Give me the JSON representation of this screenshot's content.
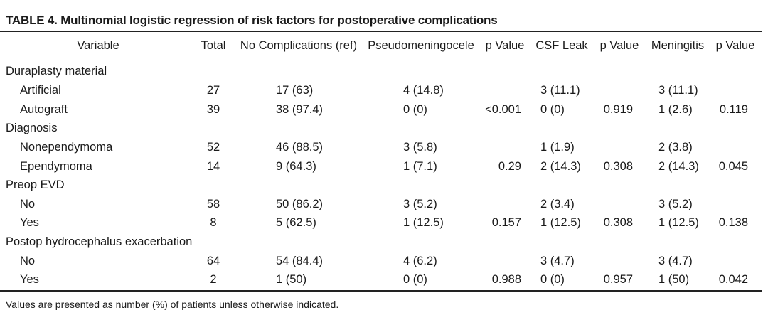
{
  "title": "TABLE 4. Multinomial logistic regression of risk factors for postoperative complications",
  "headers": [
    "Variable",
    "Total",
    "No Complications (ref)",
    "Pseudomeningocele",
    "p Value",
    "CSF Leak",
    "p Value",
    "Meningitis",
    "p Value"
  ],
  "rows": [
    {
      "type": "group",
      "label": "Duraplasty material"
    },
    {
      "type": "data",
      "label": "Artificial",
      "total": "27",
      "none": "17 (63)",
      "pseudo": "4 (14.8)",
      "p1": "",
      "csf": "3 (11.1)",
      "p2": "",
      "men": "3 (11.1)",
      "p3": ""
    },
    {
      "type": "data",
      "label": "Autograft",
      "total": "39",
      "none": "38 (97.4)",
      "pseudo": "0 (0)",
      "p1": "<0.001",
      "csf": "0 (0)",
      "p2": "0.919",
      "men": "1 (2.6)",
      "p3": "0.119"
    },
    {
      "type": "group",
      "label": "Diagnosis"
    },
    {
      "type": "data",
      "label": "Nonependymoma",
      "total": "52",
      "none": "46 (88.5)",
      "pseudo": "3 (5.8)",
      "p1": "",
      "csf": "1 (1.9)",
      "p2": "",
      "men": "2 (3.8)",
      "p3": ""
    },
    {
      "type": "data",
      "label": "Ependymoma",
      "total": "14",
      "none": "9 (64.3)",
      "pseudo": "1 (7.1)",
      "p1": "0.29",
      "csf": "2 (14.3)",
      "p2": "0.308",
      "men": "2 (14.3)",
      "p3": "0.045"
    },
    {
      "type": "group",
      "label": "Preop EVD"
    },
    {
      "type": "data",
      "label": "No",
      "total": "58",
      "none": "50 (86.2)",
      "pseudo": "3 (5.2)",
      "p1": "",
      "csf": "2 (3.4)",
      "p2": "",
      "men": "3 (5.2)",
      "p3": ""
    },
    {
      "type": "data",
      "label": "Yes",
      "total": "8",
      "none": "5 (62.5)",
      "pseudo": "1 (12.5)",
      "p1": "0.157",
      "csf": "1 (12.5)",
      "p2": "0.308",
      "men": "1 (12.5)",
      "p3": "0.138"
    },
    {
      "type": "group",
      "label": "Postop hydrocephalus exacerbation"
    },
    {
      "type": "data",
      "label": "No",
      "total": "64",
      "none": "54 (84.4)",
      "pseudo": "4 (6.2)",
      "p1": "",
      "csf": "3 (4.7)",
      "p2": "",
      "men": "3 (4.7)",
      "p3": ""
    },
    {
      "type": "data",
      "label": "Yes",
      "total": "2",
      "none": "1 (50)",
      "pseudo": "0 (0)",
      "p1": "0.988",
      "csf": "0 (0)",
      "p2": "0.957",
      "men": "1 (50)",
      "p3": "0.042"
    }
  ],
  "footnote": "Values are presented as number (%) of patients unless otherwise indicated."
}
